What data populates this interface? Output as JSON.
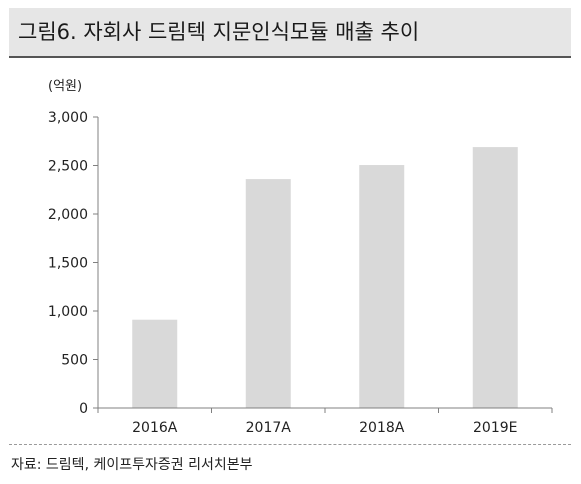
{
  "header": {
    "title": "그림6. 자회사 드림텍 지문인식모듈 매출 추이"
  },
  "chart_data": {
    "type": "bar",
    "unit_label": "(억원)",
    "categories": [
      "2016A",
      "2017A",
      "2018A",
      "2019E"
    ],
    "values": [
      910,
      2360,
      2505,
      2690
    ],
    "ylim": [
      0,
      3000
    ],
    "yticks": [
      0,
      500,
      1000,
      1500,
      2000,
      2500,
      3000
    ],
    "ytick_labels": [
      "0",
      "500",
      "1,000",
      "1,500",
      "2,000",
      "2,500",
      "3,000"
    ],
    "grid": false,
    "bar_color": "#d9d9d9",
    "axis_color": "#808080"
  },
  "footer": {
    "source": "자료: 드림텍, 케이프투자증권 리서치본부"
  }
}
